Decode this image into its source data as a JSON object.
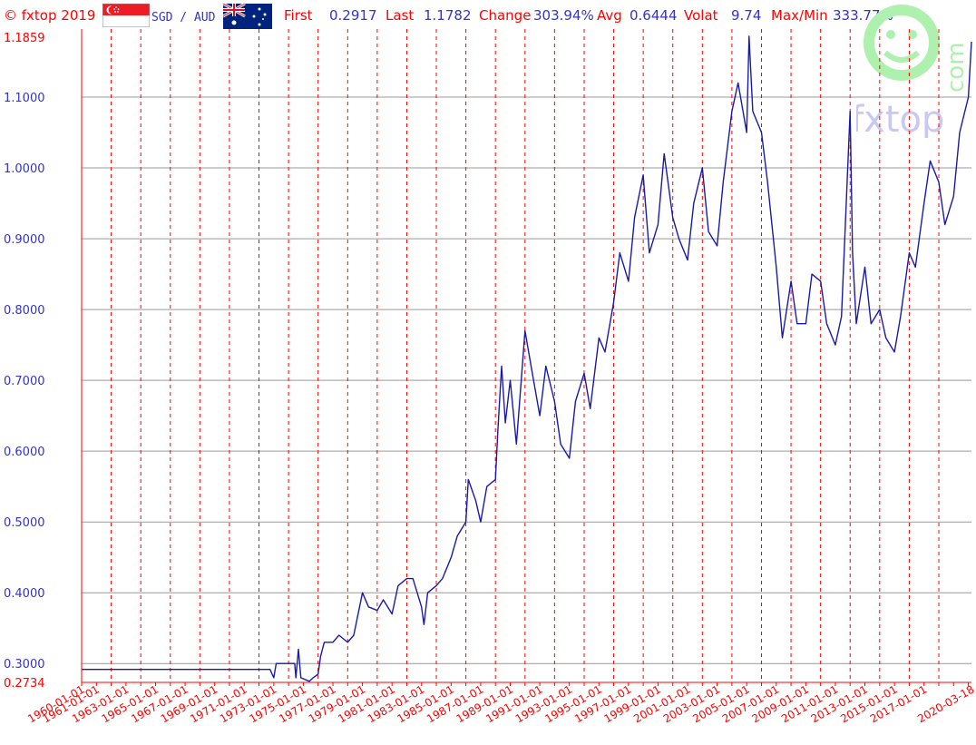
{
  "header": {
    "brand": "© fxtop 2019",
    "pair": "SGD / AUD",
    "first_label": "First",
    "first_value": "0.2917",
    "last_label": "Last",
    "last_value": "1.1782",
    "change_label": "Change",
    "change_value": "303.94%",
    "avg_label": "Avg",
    "avg_value": "0.6444",
    "volat_label": "Volat",
    "volat_value": "9.74",
    "maxmin_label": "Max/Min",
    "maxmin_value": "333.77%"
  },
  "watermark": {
    "text": "fxtop",
    "side": "com"
  },
  "colors": {
    "line": "#1a1aa6",
    "axis": "#ff0000",
    "grid_h": "#999999",
    "grid_v": "#ff0000",
    "label_blue": "#3333cc",
    "label_red": "#ff0000",
    "watermark_green": "#aef0ae",
    "watermark_blue": "#c8c8f0"
  },
  "chart_data": {
    "type": "line",
    "title": "",
    "xlabel": "",
    "ylabel": "",
    "ylim": [
      0.2734,
      1.1859
    ],
    "xlim": [
      "1960-01-01",
      "2020-03-18"
    ],
    "grid": "on",
    "ytick_labels": [
      "0.3000",
      "0.4000",
      "0.5000",
      "0.6000",
      "0.7000",
      "0.8000",
      "0.9000",
      "1.0000",
      "1.1000"
    ],
    "ytick_values": [
      0.3,
      0.4,
      0.5,
      0.6,
      0.7,
      0.8,
      0.9,
      1.0,
      1.1
    ],
    "ymin_label": "0.2734",
    "ymax_label": "1.1859",
    "xtick_labels": [
      "1960-01-01",
      "1961-01-01",
      "1963-01-01",
      "1965-01-01",
      "1967-01-01",
      "1969-01-01",
      "1971-01-01",
      "1973-01-01",
      "1975-01-01",
      "1977-01-01",
      "1979-01-01",
      "1981-01-01",
      "1983-01-01",
      "1985-01-01",
      "1987-01-01",
      "1989-01-01",
      "1991-01-01",
      "1993-01-01",
      "1995-01-01",
      "1997-01-01",
      "1999-01-01",
      "2001-01-01",
      "2003-01-01",
      "2005-01-01",
      "2007-01-01",
      "2009-01-01",
      "2011-01-01",
      "2013-01-01",
      "2015-01-01",
      "2017-01-01",
      "2020-03-18"
    ],
    "dashed_gridline_dates": [
      "1962-01-01",
      "1964-01-01",
      "1966-01-01",
      "1968-01-01",
      "1970-01-01",
      "1972-01-01",
      "1974-01-01",
      "1976-01-01",
      "1978-01-01",
      "1980-01-01",
      "1982-01-01",
      "1984-01-01",
      "1986-01-01",
      "1988-01-01",
      "1990-01-01",
      "1992-01-01",
      "1994-01-01",
      "1996-01-01",
      "1998-01-01",
      "2000-01-01",
      "2002-01-01",
      "2004-01-01",
      "2006-01-01",
      "2008-01-01",
      "2010-01-01",
      "2012-01-01",
      "2014-01-01",
      "2016-01-01",
      "2018-01-01"
    ],
    "series": [
      {
        "name": "SGD / AUD",
        "points": [
          [
            "1960-01-01",
            0.2917
          ],
          [
            "1965-01-01",
            0.2917
          ],
          [
            "1969-01-01",
            0.2917
          ],
          [
            "1972-10-01",
            0.2917
          ],
          [
            "1973-01-01",
            0.28
          ],
          [
            "1973-03-01",
            0.3
          ],
          [
            "1974-06-01",
            0.3
          ],
          [
            "1974-07-01",
            0.28
          ],
          [
            "1974-09-01",
            0.32
          ],
          [
            "1974-11-01",
            0.28
          ],
          [
            "1975-06-01",
            0.275
          ],
          [
            "1975-09-01",
            0.28
          ],
          [
            "1976-01-01",
            0.285
          ],
          [
            "1976-03-01",
            0.31
          ],
          [
            "1976-06-01",
            0.33
          ],
          [
            "1977-01-01",
            0.33
          ],
          [
            "1977-06-01",
            0.34
          ],
          [
            "1978-01-01",
            0.33
          ],
          [
            "1978-06-01",
            0.34
          ],
          [
            "1979-01-01",
            0.4
          ],
          [
            "1979-06-01",
            0.38
          ],
          [
            "1980-01-01",
            0.375
          ],
          [
            "1980-06-01",
            0.39
          ],
          [
            "1981-01-01",
            0.37
          ],
          [
            "1981-06-01",
            0.41
          ],
          [
            "1982-01-01",
            0.42
          ],
          [
            "1982-06-01",
            0.42
          ],
          [
            "1983-01-01",
            0.38
          ],
          [
            "1983-03-01",
            0.355
          ],
          [
            "1983-06-01",
            0.4
          ],
          [
            "1984-01-01",
            0.41
          ],
          [
            "1984-06-01",
            0.42
          ],
          [
            "1985-01-01",
            0.45
          ],
          [
            "1985-06-01",
            0.48
          ],
          [
            "1986-01-01",
            0.5
          ],
          [
            "1986-03-01",
            0.56
          ],
          [
            "1986-09-01",
            0.53
          ],
          [
            "1987-01-01",
            0.5
          ],
          [
            "1987-06-01",
            0.55
          ],
          [
            "1988-01-01",
            0.56
          ],
          [
            "1988-03-01",
            0.63
          ],
          [
            "1988-06-01",
            0.72
          ],
          [
            "1988-09-01",
            0.64
          ],
          [
            "1989-01-01",
            0.7
          ],
          [
            "1989-06-01",
            0.61
          ],
          [
            "1990-01-01",
            0.77
          ],
          [
            "1990-06-01",
            0.72
          ],
          [
            "1991-01-01",
            0.65
          ],
          [
            "1991-06-01",
            0.72
          ],
          [
            "1992-01-01",
            0.67
          ],
          [
            "1992-06-01",
            0.61
          ],
          [
            "1993-01-01",
            0.59
          ],
          [
            "1993-06-01",
            0.67
          ],
          [
            "1994-01-01",
            0.71
          ],
          [
            "1994-06-01",
            0.66
          ],
          [
            "1995-01-01",
            0.76
          ],
          [
            "1995-06-01",
            0.74
          ],
          [
            "1996-01-01",
            0.81
          ],
          [
            "1996-06-01",
            0.88
          ],
          [
            "1997-01-01",
            0.84
          ],
          [
            "1997-06-01",
            0.93
          ],
          [
            "1998-01-01",
            0.99
          ],
          [
            "1998-06-01",
            0.88
          ],
          [
            "1999-01-01",
            0.92
          ],
          [
            "1999-06-01",
            1.02
          ],
          [
            "2000-01-01",
            0.93
          ],
          [
            "2000-06-01",
            0.9
          ],
          [
            "2001-01-01",
            0.87
          ],
          [
            "2001-06-01",
            0.95
          ],
          [
            "2002-01-01",
            1.0
          ],
          [
            "2002-06-01",
            0.91
          ],
          [
            "2003-01-01",
            0.89
          ],
          [
            "2003-06-01",
            0.98
          ],
          [
            "2004-01-01",
            1.08
          ],
          [
            "2004-06-01",
            1.12
          ],
          [
            "2005-01-01",
            1.05
          ],
          [
            "2005-03-01",
            1.1859
          ],
          [
            "2005-06-01",
            1.08
          ],
          [
            "2006-01-01",
            1.05
          ],
          [
            "2006-06-01",
            0.98
          ],
          [
            "2007-01-01",
            0.86
          ],
          [
            "2007-06-01",
            0.76
          ],
          [
            "2008-01-01",
            0.84
          ],
          [
            "2008-06-01",
            0.78
          ],
          [
            "2009-01-01",
            0.78
          ],
          [
            "2009-06-01",
            0.85
          ],
          [
            "2010-01-01",
            0.84
          ],
          [
            "2010-06-01",
            0.78
          ],
          [
            "2011-01-01",
            0.75
          ],
          [
            "2011-06-01",
            0.79
          ],
          [
            "2012-01-01",
            1.08
          ],
          [
            "2012-03-01",
            0.88
          ],
          [
            "2012-06-01",
            0.78
          ],
          [
            "2013-01-01",
            0.86
          ],
          [
            "2013-06-01",
            0.78
          ],
          [
            "2014-01-01",
            0.8
          ],
          [
            "2014-06-01",
            0.76
          ],
          [
            "2015-01-01",
            0.74
          ],
          [
            "2015-06-01",
            0.79
          ],
          [
            "2016-01-01",
            0.88
          ],
          [
            "2016-06-01",
            0.86
          ],
          [
            "2017-01-01",
            0.95
          ],
          [
            "2017-06-01",
            1.01
          ],
          [
            "2018-01-01",
            0.98
          ],
          [
            "2018-06-01",
            0.92
          ],
          [
            "2019-01-01",
            0.96
          ],
          [
            "2019-06-01",
            1.05
          ],
          [
            "2020-01-01",
            1.1
          ],
          [
            "2020-03-18",
            1.1782
          ]
        ]
      }
    ]
  }
}
